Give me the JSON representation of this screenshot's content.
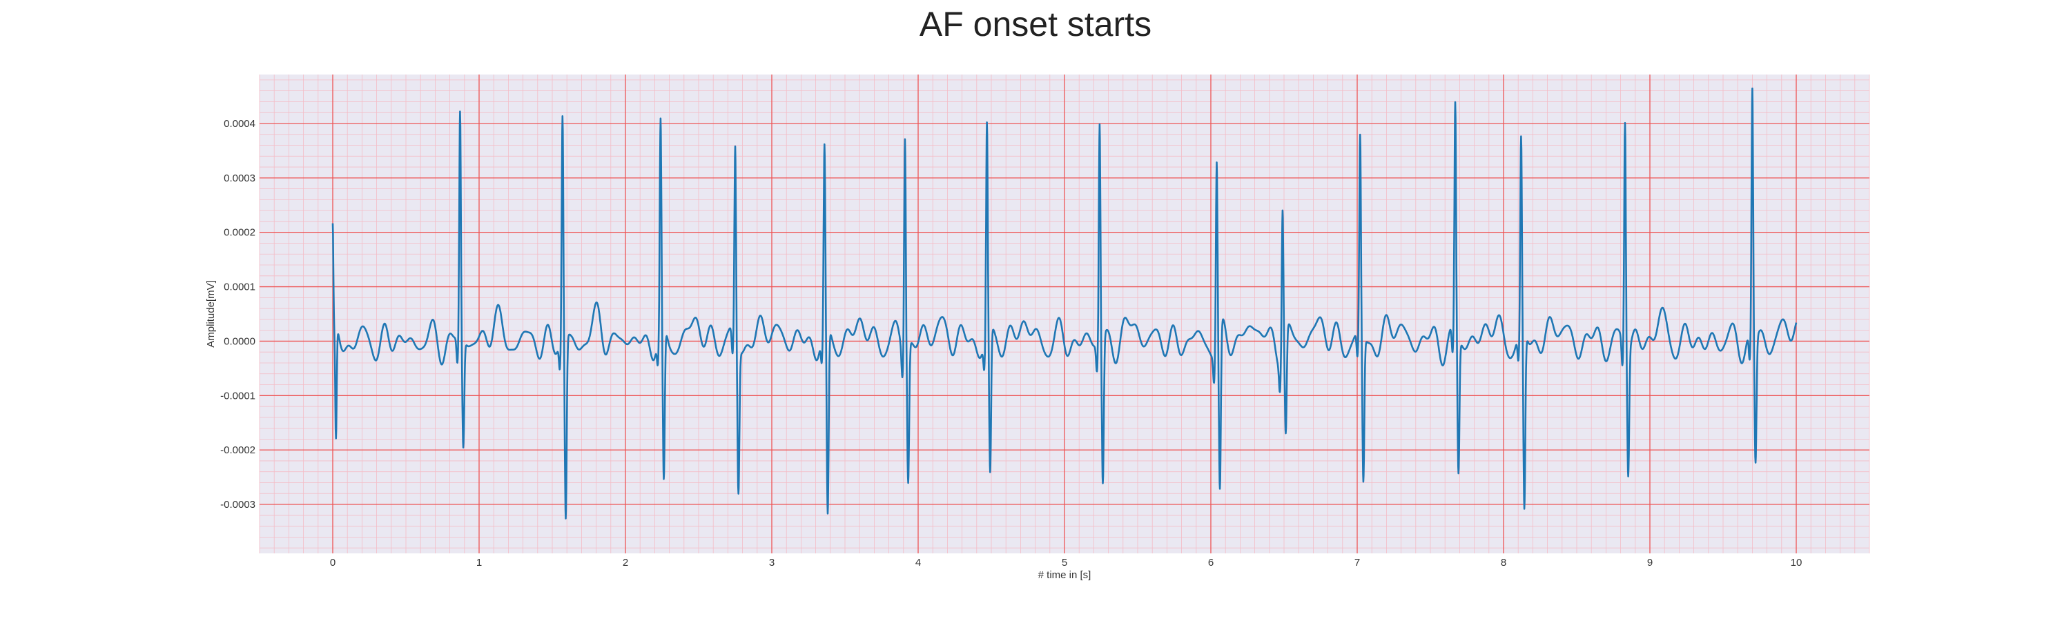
{
  "chart_data": {
    "type": "line",
    "title": "AF onset starts",
    "xlabel": "# time in [s]",
    "ylabel": "Amplitude[mV]",
    "xlim": [
      -0.5,
      10.5
    ],
    "ylim": [
      -0.00039,
      0.00049
    ],
    "x_ticks": [
      "0",
      "1",
      "2",
      "3",
      "4",
      "5",
      "6",
      "7",
      "8",
      "9",
      "10"
    ],
    "y_ticks": [
      "0.0004",
      "0.0003",
      "0.0002",
      "0.0001",
      "0.0000",
      "-0.0001",
      "-0.0002",
      "-0.0003"
    ],
    "grid": "major and minor (ECG paper style)",
    "colors": {
      "line": "#1f77b4",
      "plot_background": "#eae8f2",
      "major_grid": "#ee5555",
      "minor_grid": "#f4bcc6"
    },
    "beats": [
      {
        "t": 0.87,
        "peak": 0.000412,
        "trough": -0.0002
      },
      {
        "t": 1.57,
        "peak": 0.000405,
        "trough": -0.00034
      },
      {
        "t": 2.24,
        "peak": 0.000375,
        "trough": -0.00029
      },
      {
        "t": 2.75,
        "peak": 0.000345,
        "trough": -0.00027
      },
      {
        "t": 3.36,
        "peak": 0.00033,
        "trough": -0.00035
      },
      {
        "t": 3.91,
        "peak": 0.000398,
        "trough": -0.00025
      },
      {
        "t": 4.47,
        "peak": 0.000385,
        "trough": -0.00027
      },
      {
        "t": 5.24,
        "peak": 0.000402,
        "trough": -0.00027
      },
      {
        "t": 6.04,
        "peak": 0.00034,
        "trough": -0.0003
      },
      {
        "t": 6.49,
        "peak": 0.000262,
        "trough": -0.00019
      },
      {
        "t": 7.02,
        "peak": 0.000358,
        "trough": -0.00027
      },
      {
        "t": 7.67,
        "peak": 0.00042,
        "trough": -0.00025
      },
      {
        "t": 8.12,
        "peak": 0.00035,
        "trough": -0.00033
      },
      {
        "t": 8.83,
        "peak": 0.000415,
        "trough": -0.00023
      },
      {
        "t": 9.7,
        "peak": 0.000455,
        "trough": -0.00023
      }
    ],
    "start_value": 0.000195,
    "end_value": 0.0,
    "x_range_data": [
      0,
      10
    ]
  }
}
